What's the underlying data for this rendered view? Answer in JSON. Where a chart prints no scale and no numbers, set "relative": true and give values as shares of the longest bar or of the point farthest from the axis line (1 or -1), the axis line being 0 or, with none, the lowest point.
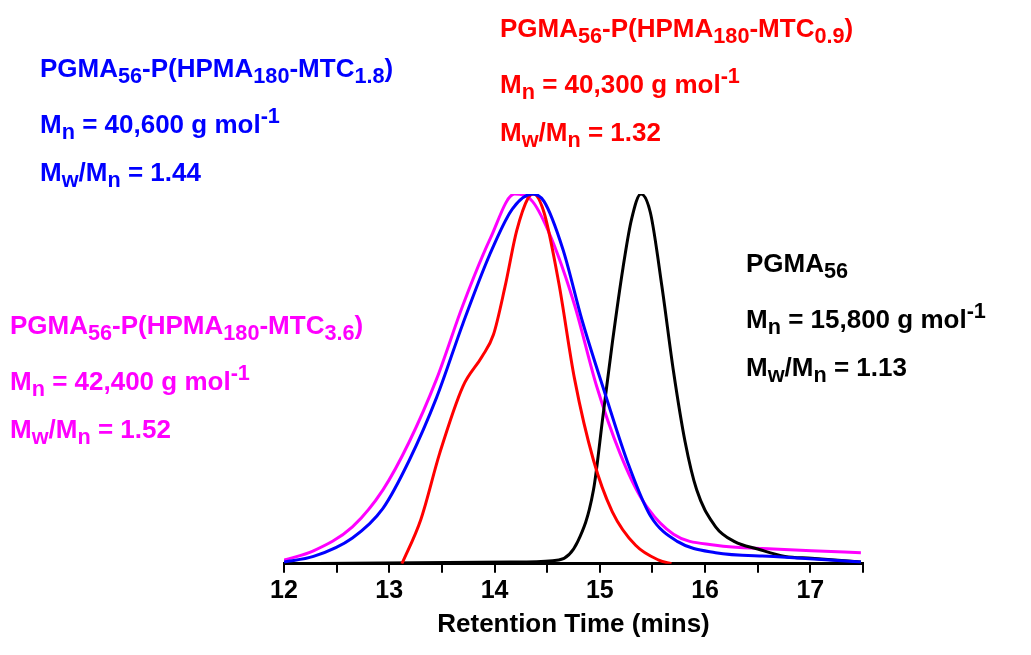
{
  "chart_data": {
    "type": "line",
    "relative": true,
    "xlabel": "Retention Time (mins)",
    "xlim": [
      12,
      17.5
    ],
    "xticks": [
      12,
      {
        "value": 12.5,
        "label": null
      },
      13,
      {
        "value": 13.5,
        "label": null
      },
      14,
      {
        "value": 14.5,
        "label": null
      },
      15,
      {
        "value": 15.5,
        "label": null
      },
      16,
      {
        "value": 16.5,
        "label": null
      },
      17,
      {
        "value": 17.5,
        "label": null
      }
    ],
    "grid": false,
    "legend": false,
    "marker": "none",
    "line_style": "solid",
    "series": [
      {
        "name": "PGMA$_{56}$-P(HPMA$_{180}$-MTC$_{1.8}$)",
        "color": "#0000ff",
        "x": [
          12,
          12.28,
          12.65,
          12.94,
          13.19,
          13.45,
          13.7,
          13.96,
          14.17,
          14.36,
          14.47,
          14.65,
          14.83,
          15.05,
          15.27,
          15.48,
          15.74,
          16.1,
          16.65,
          17.48
        ],
        "values": [
          0.005,
          0.02,
          0.07,
          0.15,
          0.28,
          0.45,
          0.65,
          0.84,
          0.96,
          1,
          0.98,
          0.85,
          0.66,
          0.46,
          0.27,
          0.13,
          0.06,
          0.03,
          0.02,
          0.005
        ]
      },
      {
        "name": "PGMA$_{56}$-P(HPMA$_{180}$-MTC$_{0.9}$)",
        "color": "#ff0000",
        "x": [
          13.12,
          13.3,
          13.48,
          13.7,
          13.88,
          13.99,
          14.1,
          14.21,
          14.32,
          14.37,
          14.47,
          14.61,
          14.76,
          14.94,
          15.12,
          15.34,
          15.56,
          15.68
        ],
        "values": [
          0,
          0.12,
          0.3,
          0.48,
          0.56,
          0.62,
          0.75,
          0.9,
          0.99,
          1,
          0.95,
          0.76,
          0.5,
          0.28,
          0.14,
          0.05,
          0.01,
          0
        ]
      },
      {
        "name": "PGMA$_{56}$",
        "color": "#000000",
        "x": [
          12,
          14.28,
          14.61,
          14.79,
          14.94,
          15.03,
          15.12,
          15.22,
          15.3,
          15.39,
          15.48,
          15.59,
          15.7,
          15.81,
          15.92,
          16.1,
          16.28,
          16.5,
          16.76,
          17.01,
          17.48
        ],
        "values": [
          0,
          0.005,
          0.01,
          0.06,
          0.2,
          0.4,
          0.6,
          0.8,
          0.93,
          1,
          0.95,
          0.75,
          0.52,
          0.33,
          0.2,
          0.1,
          0.06,
          0.04,
          0.02,
          0.015,
          0.005
        ]
      },
      {
        "name": "PGMA$_{56}$-P(HPMA$_{180}$-MTC$_{3.6}$)",
        "color": "#ff00ff",
        "x": [
          12,
          12.28,
          12.65,
          12.94,
          13.19,
          13.45,
          13.7,
          13.96,
          14.19,
          14.36,
          14.54,
          14.76,
          14.97,
          15.19,
          15.41,
          15.7,
          16.1,
          16.65,
          17.01,
          17.48
        ],
        "values": [
          0.01,
          0.035,
          0.1,
          0.2,
          0.33,
          0.5,
          0.7,
          0.88,
          1,
          0.98,
          0.88,
          0.7,
          0.48,
          0.3,
          0.17,
          0.08,
          0.05,
          0.04,
          0.035,
          0.03
        ]
      }
    ],
    "annotations": [
      "M$_{n}$ = 40,600 g mol$^{-1}$",
      "M$_{w}$/M$_{n}$ = 1.44",
      "M$_{n}$ = 40,300 g mol$^{-1}$",
      "M$_{w}$/M$_{n}$ = 1.32",
      "M$_{n}$ = 15,800 g mol$^{-1}$",
      "M$_{w}$/M$_{n}$ = 1.13",
      "M$_{n}$ = 42,400 g mol$^{-1}$",
      "M$_{w}$/M$_{n}$ = 1.52"
    ]
  }
}
